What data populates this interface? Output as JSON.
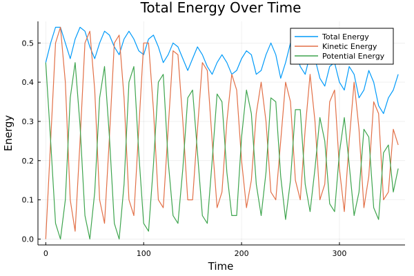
{
  "chart_data": {
    "type": "line",
    "title": "Total Energy Over Time",
    "xlabel": "Time",
    "ylabel": "Energy",
    "xlim": [
      -8,
      367
    ],
    "ylim": [
      -0.015,
      0.555
    ],
    "xticks": [
      0,
      100,
      200,
      300
    ],
    "yticks": [
      0.0,
      0.1,
      0.2,
      0.3,
      0.4,
      0.5
    ],
    "xtick_labels": [
      "0",
      "100",
      "200",
      "300"
    ],
    "ytick_labels": [
      "0.0",
      "0.1",
      "0.2",
      "0.3",
      "0.4",
      "0.5"
    ],
    "grid": true,
    "legend_position": "top-right",
    "x": [
      0,
      5,
      10,
      15,
      20,
      25,
      30,
      35,
      40,
      45,
      50,
      55,
      60,
      65,
      70,
      75,
      80,
      85,
      90,
      95,
      100,
      105,
      110,
      115,
      120,
      125,
      130,
      135,
      140,
      145,
      150,
      155,
      160,
      165,
      170,
      175,
      180,
      185,
      190,
      195,
      200,
      205,
      210,
      215,
      220,
      225,
      230,
      235,
      240,
      245,
      250,
      255,
      260,
      265,
      270,
      275,
      280,
      285,
      290,
      295,
      300,
      305,
      310,
      315,
      320,
      325,
      330,
      335,
      340,
      345,
      350,
      355,
      360
    ],
    "series": [
      {
        "name": "Total Energy",
        "color": "#009af9",
        "values": [
          0.45,
          0.5,
          0.54,
          0.54,
          0.5,
          0.46,
          0.51,
          0.54,
          0.53,
          0.49,
          0.46,
          0.5,
          0.53,
          0.52,
          0.49,
          0.47,
          0.51,
          0.53,
          0.51,
          0.48,
          0.47,
          0.51,
          0.52,
          0.49,
          0.45,
          0.47,
          0.5,
          0.49,
          0.46,
          0.43,
          0.46,
          0.49,
          0.47,
          0.44,
          0.42,
          0.45,
          0.47,
          0.45,
          0.42,
          0.43,
          0.46,
          0.48,
          0.47,
          0.42,
          0.43,
          0.47,
          0.5,
          0.47,
          0.41,
          0.45,
          0.5,
          0.48,
          0.44,
          0.42,
          0.47,
          0.46,
          0.41,
          0.39,
          0.44,
          0.45,
          0.4,
          0.38,
          0.44,
          0.42,
          0.36,
          0.38,
          0.43,
          0.4,
          0.34,
          0.32,
          0.36,
          0.38,
          0.42
        ]
      },
      {
        "name": "Kinetic Energy",
        "color": "#e26f46",
        "values": [
          0.0,
          0.25,
          0.5,
          0.54,
          0.4,
          0.1,
          0.02,
          0.25,
          0.5,
          0.53,
          0.38,
          0.1,
          0.04,
          0.26,
          0.5,
          0.52,
          0.36,
          0.1,
          0.06,
          0.28,
          0.5,
          0.5,
          0.33,
          0.1,
          0.08,
          0.28,
          0.48,
          0.47,
          0.3,
          0.1,
          0.1,
          0.28,
          0.45,
          0.43,
          0.25,
          0.08,
          0.12,
          0.3,
          0.42,
          0.38,
          0.2,
          0.08,
          0.15,
          0.32,
          0.4,
          0.3,
          0.12,
          0.1,
          0.25,
          0.4,
          0.35,
          0.15,
          0.1,
          0.28,
          0.42,
          0.3,
          0.1,
          0.14,
          0.35,
          0.38,
          0.18,
          0.07,
          0.25,
          0.4,
          0.28,
          0.08,
          0.16,
          0.35,
          0.32,
          0.1,
          0.12,
          0.28,
          0.24
        ]
      },
      {
        "name": "Potential Energy",
        "color": "#3da44d",
        "values": [
          0.45,
          0.25,
          0.04,
          0.0,
          0.1,
          0.36,
          0.45,
          0.29,
          0.06,
          0.0,
          0.12,
          0.36,
          0.44,
          0.26,
          0.04,
          0.0,
          0.14,
          0.4,
          0.44,
          0.22,
          0.04,
          0.02,
          0.19,
          0.4,
          0.42,
          0.2,
          0.06,
          0.04,
          0.18,
          0.36,
          0.38,
          0.22,
          0.06,
          0.04,
          0.2,
          0.37,
          0.35,
          0.17,
          0.06,
          0.06,
          0.26,
          0.38,
          0.32,
          0.14,
          0.06,
          0.17,
          0.36,
          0.35,
          0.16,
          0.05,
          0.15,
          0.33,
          0.33,
          0.14,
          0.07,
          0.18,
          0.31,
          0.25,
          0.09,
          0.07,
          0.22,
          0.31,
          0.19,
          0.06,
          0.12,
          0.28,
          0.26,
          0.08,
          0.05,
          0.22,
          0.24,
          0.12,
          0.18
        ]
      }
    ]
  }
}
